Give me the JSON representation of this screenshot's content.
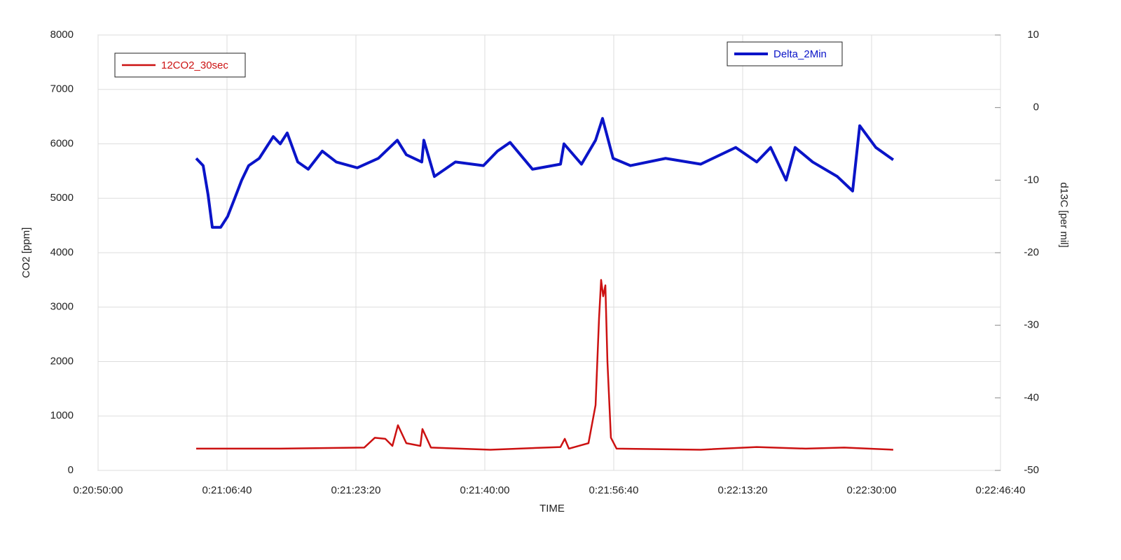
{
  "chart_data": {
    "type": "line",
    "x_label": "TIME",
    "y_label": "CO2 [ppm]",
    "y2_label": "d13C [per mil]",
    "xlim": [
      75000,
      82000
    ],
    "xticks": [
      {
        "value": 75000,
        "label": "0:20:50:00"
      },
      {
        "value": 76000,
        "label": "0:21:06:40"
      },
      {
        "value": 77000,
        "label": "0:21:23:20"
      },
      {
        "value": 78000,
        "label": "0:21:40:00"
      },
      {
        "value": 79000,
        "label": "0:21:56:40"
      },
      {
        "value": 80000,
        "label": "0:22:13:20"
      },
      {
        "value": 81000,
        "label": "0:22:30:00"
      },
      {
        "value": 82000,
        "label": "0:22:46:40"
      }
    ],
    "ylim": [
      0,
      8000
    ],
    "yticks": [
      0,
      1000,
      2000,
      3000,
      4000,
      5000,
      6000,
      7000,
      8000
    ],
    "y2lim": [
      -50,
      10
    ],
    "y2ticks": [
      -50,
      -40,
      -30,
      -20,
      -10,
      0,
      10
    ],
    "grid": true,
    "series": [
      {
        "name": "12CO2_30sec",
        "color": "#cc1111",
        "axis": "y",
        "legend": "upper left",
        "x": [
          75761,
          76413,
          77065,
          77147,
          77228,
          77283,
          77326,
          77391,
          77500,
          77516,
          77582,
          78043,
          78587,
          78620,
          78652,
          78804,
          78859,
          78886,
          78902,
          78918,
          78935,
          78951,
          78978,
          79022,
          79674,
          80109,
          80489,
          80788,
          81168
        ],
        "values": [
          400,
          400,
          420,
          600,
          580,
          450,
          830,
          500,
          450,
          760,
          420,
          380,
          430,
          580,
          400,
          500,
          1200,
          2800,
          3500,
          3200,
          3400,
          2000,
          600,
          400,
          380,
          430,
          400,
          420,
          380
        ]
      },
      {
        "name": "Delta_2Min",
        "color": "#0a14c8",
        "axis": "y2",
        "legend": "upper right",
        "x": [
          75761,
          75815,
          75853,
          75886,
          75951,
          76005,
          76060,
          76114,
          76168,
          76250,
          76359,
          76413,
          76467,
          76549,
          76630,
          76739,
          76848,
          77011,
          77174,
          77321,
          77391,
          77511,
          77527,
          77609,
          77772,
          77989,
          78098,
          78196,
          78370,
          78587,
          78614,
          78750,
          78859,
          78913,
          78995,
          79130,
          79402,
          79674,
          79946,
          80109,
          80217,
          80337,
          80407,
          80543,
          80734,
          80853,
          80908,
          81033,
          81168
        ],
        "values": [
          -7,
          -8,
          -12,
          -16.5,
          -16.5,
          -15,
          -12.5,
          -10,
          -8,
          -7,
          -4,
          -5,
          -3.5,
          -7.5,
          -8.5,
          -6,
          -7.5,
          -8.3,
          -7,
          -4.5,
          -6.5,
          -7.5,
          -4.5,
          -9.5,
          -7.5,
          -8,
          -6,
          -4.8,
          -8.5,
          -7.8,
          -5,
          -7.8,
          -4.5,
          -1.5,
          -7,
          -8,
          -7,
          -7.8,
          -5.5,
          -7.5,
          -5.5,
          -10,
          -5.5,
          -7.5,
          -9.5,
          -11.5,
          -2.5,
          -5.5,
          -7.2
        ]
      }
    ]
  }
}
